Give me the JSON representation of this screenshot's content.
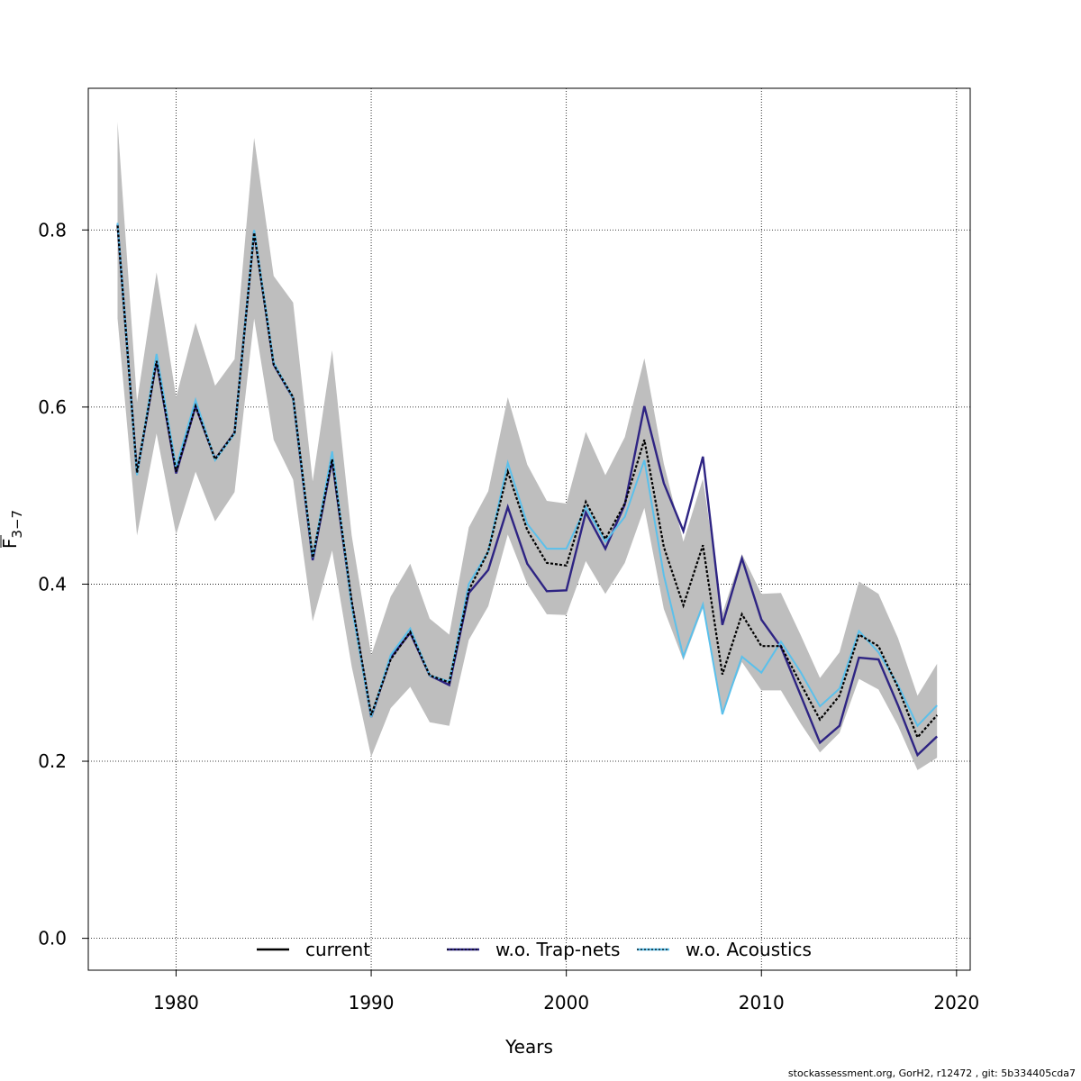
{
  "chart_data": {
    "type": "line",
    "xlabel": "Years",
    "ylabel": {
      "base": "F",
      "sub": "3−7"
    },
    "xlim": [
      1975.5,
      2020.7
    ],
    "ylim": [
      -0.036,
      0.96
    ],
    "xticks": [
      1980,
      1990,
      2000,
      2010,
      2020
    ],
    "yticks": [
      0.0,
      0.2,
      0.4,
      0.6,
      0.8
    ],
    "ytick_labels": [
      "0.0",
      "0.2",
      "0.4",
      "0.6",
      "0.8"
    ],
    "grid": true,
    "legend_position": "bottom",
    "years": [
      1977,
      1978,
      1979,
      1980,
      1981,
      1982,
      1983,
      1984,
      1985,
      1986,
      1987,
      1988,
      1989,
      1990,
      1991,
      1992,
      1993,
      1994,
      1995,
      1996,
      1997,
      1998,
      1999,
      2000,
      2001,
      2002,
      2003,
      2004,
      2005,
      2006,
      2007,
      2008,
      2009,
      2010,
      2011,
      2012,
      2013,
      2014,
      2015,
      2016,
      2017,
      2018,
      2019
    ],
    "band": {
      "upper": [
        0.922,
        0.606,
        0.752,
        0.611,
        0.695,
        0.624,
        0.654,
        0.904,
        0.748,
        0.718,
        0.516,
        0.664,
        0.455,
        0.32,
        0.386,
        0.423,
        0.361,
        0.343,
        0.464,
        0.505,
        0.611,
        0.535,
        0.494,
        0.491,
        0.572,
        0.523,
        0.566,
        0.655,
        0.536,
        0.448,
        0.519,
        0.367,
        0.434,
        0.389,
        0.39,
        0.343,
        0.294,
        0.323,
        0.403,
        0.389,
        0.339,
        0.274,
        0.31
      ],
      "lower": [
        0.7,
        0.455,
        0.57,
        0.456,
        0.527,
        0.471,
        0.504,
        0.7,
        0.563,
        0.518,
        0.358,
        0.438,
        0.307,
        0.205,
        0.26,
        0.284,
        0.244,
        0.24,
        0.337,
        0.375,
        0.456,
        0.4,
        0.366,
        0.365,
        0.426,
        0.389,
        0.424,
        0.486,
        0.372,
        0.314,
        0.373,
        0.254,
        0.312,
        0.28,
        0.28,
        0.243,
        0.21,
        0.232,
        0.293,
        0.281,
        0.24,
        0.19,
        0.204
      ]
    },
    "series": [
      {
        "name": "current",
        "color": "#000000",
        "values": [
          0.805,
          0.526,
          0.652,
          0.527,
          0.601,
          0.541,
          0.571,
          0.797,
          0.648,
          0.611,
          0.43,
          0.541,
          0.381,
          0.252,
          0.315,
          0.346,
          0.297,
          0.289,
          0.393,
          0.437,
          0.527,
          0.461,
          0.424,
          0.421,
          0.493,
          0.451,
          0.491,
          0.563,
          0.442,
          0.376,
          0.444,
          0.298,
          0.366,
          0.33,
          0.33,
          0.288,
          0.247,
          0.274,
          0.343,
          0.33,
          0.283,
          0.227,
          0.252
        ]
      },
      {
        "name": "w.o. Trap-nets",
        "color": "#2e2483",
        "values": [
          0.806,
          0.525,
          0.652,
          0.525,
          0.601,
          0.541,
          0.571,
          0.798,
          0.648,
          0.61,
          0.427,
          0.54,
          0.378,
          0.25,
          0.317,
          0.345,
          0.297,
          0.286,
          0.39,
          0.416,
          0.487,
          0.423,
          0.392,
          0.393,
          0.481,
          0.44,
          0.49,
          0.601,
          0.514,
          0.46,
          0.544,
          0.354,
          0.429,
          0.36,
          0.329,
          0.275,
          0.221,
          0.24,
          0.317,
          0.315,
          0.263,
          0.207,
          0.228
        ]
      },
      {
        "name": "w.o. Acoustics",
        "color": "#5bc0eb",
        "values": [
          0.808,
          0.523,
          0.66,
          0.532,
          0.608,
          0.54,
          0.57,
          0.8,
          0.65,
          0.61,
          0.43,
          0.55,
          0.375,
          0.25,
          0.32,
          0.35,
          0.297,
          0.29,
          0.4,
          0.437,
          0.537,
          0.468,
          0.44,
          0.44,
          0.487,
          0.448,
          0.476,
          0.54,
          0.41,
          0.318,
          0.377,
          0.253,
          0.318,
          0.3,
          0.335,
          0.301,
          0.262,
          0.282,
          0.347,
          0.323,
          0.286,
          0.24,
          0.263
        ]
      }
    ],
    "legend": [
      {
        "label": "current",
        "color": "#000000"
      },
      {
        "label": "w.o. Trap-nets",
        "color": "#2e2483"
      },
      {
        "label": "w.o. Acoustics",
        "color": "#5bc0eb"
      }
    ]
  },
  "footer_text": "stockassessment.org, GorH2, r12472 , git: 5b334405cda7"
}
